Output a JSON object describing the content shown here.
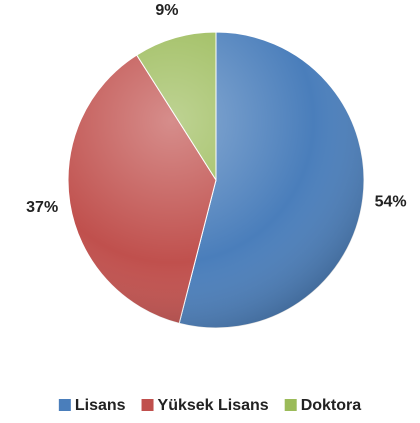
{
  "chart_data": {
    "type": "pie",
    "categories": [
      "Lisans",
      "Yüksek Lisans",
      "Doktora"
    ],
    "values": [
      54,
      37,
      9
    ],
    "value_labels": [
      "54%",
      "37%",
      "9%"
    ],
    "colors": [
      "#4a7ebb",
      "#c0504d",
      "#9bbb59"
    ],
    "legend": "bottom"
  }
}
